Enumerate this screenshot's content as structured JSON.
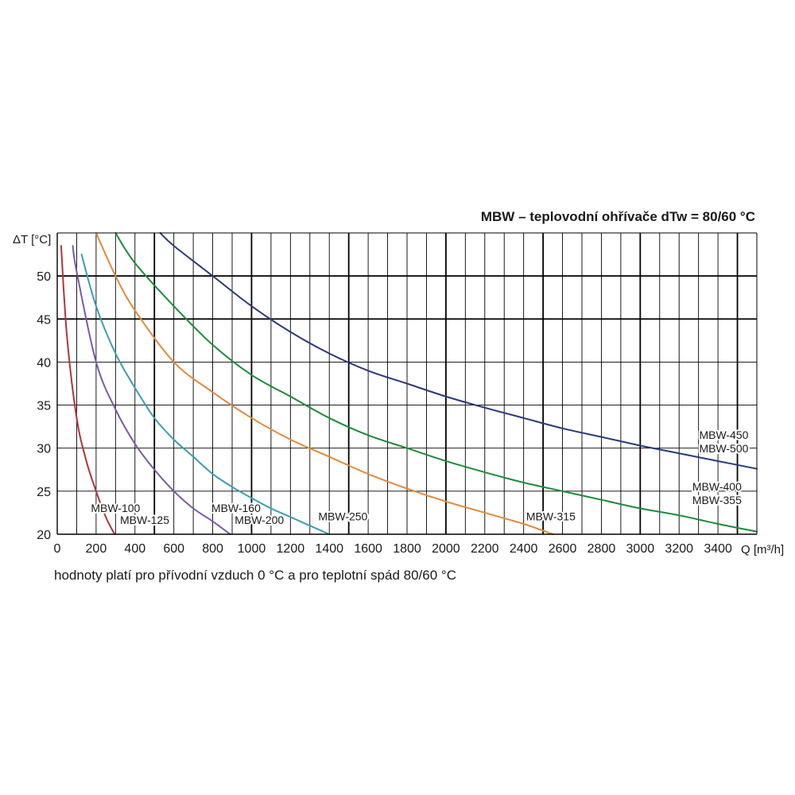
{
  "chart_data": {
    "type": "line",
    "title": "MBW – teplovodní ohřívače dTw = 80/60 °C",
    "xlabel": "Q [m³/h]",
    "ylabel": "ΔT [°C]",
    "xlim": [
      0,
      3600
    ],
    "ylim": [
      20,
      55
    ],
    "x_ticks": [
      0,
      200,
      400,
      600,
      800,
      1000,
      1200,
      1400,
      1600,
      1800,
      2000,
      2200,
      2400,
      2600,
      2800,
      3000,
      3200,
      3400
    ],
    "y_ticks": [
      20,
      25,
      30,
      35,
      40,
      45,
      50
    ],
    "grid": true,
    "series": [
      {
        "name": "MBW-100 / MBW-125",
        "color": "#b0343c",
        "points": [
          [
            20,
            53.5
          ],
          [
            50,
            43
          ],
          [
            100,
            33.5
          ],
          [
            150,
            28.5
          ],
          [
            200,
            25
          ],
          [
            250,
            22
          ],
          [
            295,
            20
          ]
        ]
      },
      {
        "name": "MBW-160 / MBW-200",
        "color": "#7a5aa8",
        "points": [
          [
            80,
            53.5
          ],
          [
            100,
            50.5
          ],
          [
            200,
            40
          ],
          [
            300,
            34.5
          ],
          [
            400,
            30.5
          ],
          [
            500,
            27.5
          ],
          [
            600,
            25
          ],
          [
            700,
            23
          ],
          [
            800,
            21.5
          ],
          [
            890,
            20
          ]
        ]
      },
      {
        "name": "MBW-250",
        "color": "#3a9cb8",
        "points": [
          [
            125,
            52.5
          ],
          [
            200,
            46.5
          ],
          [
            300,
            41
          ],
          [
            400,
            37
          ],
          [
            500,
            33.5
          ],
          [
            600,
            31
          ],
          [
            700,
            29
          ],
          [
            800,
            27
          ],
          [
            900,
            25.5
          ],
          [
            1000,
            24.2
          ],
          [
            1100,
            23
          ],
          [
            1200,
            22
          ],
          [
            1300,
            21
          ],
          [
            1400,
            20
          ]
        ]
      },
      {
        "name": "MBW-315",
        "color": "#e08a3c",
        "points": [
          [
            200,
            55
          ],
          [
            300,
            50
          ],
          [
            400,
            46
          ],
          [
            600,
            40
          ],
          [
            800,
            36.5
          ],
          [
            1000,
            33.5
          ],
          [
            1200,
            31
          ],
          [
            1400,
            29
          ],
          [
            1600,
            27
          ],
          [
            1800,
            25.3
          ],
          [
            2000,
            23.8
          ],
          [
            2200,
            22.5
          ],
          [
            2400,
            21.2
          ],
          [
            2550,
            20
          ]
        ]
      },
      {
        "name": "MBW-400 / MBW-355",
        "color": "#1e8a3c",
        "points": [
          [
            300,
            55
          ],
          [
            400,
            51.5
          ],
          [
            600,
            46.5
          ],
          [
            800,
            42
          ],
          [
            1000,
            38.5
          ],
          [
            1200,
            36
          ],
          [
            1400,
            33.5
          ],
          [
            1600,
            31.5
          ],
          [
            1800,
            30
          ],
          [
            2000,
            28.5
          ],
          [
            2200,
            27.2
          ],
          [
            2400,
            26
          ],
          [
            2600,
            25
          ],
          [
            2800,
            24
          ],
          [
            3000,
            23
          ],
          [
            3200,
            22.2
          ],
          [
            3400,
            21.2
          ],
          [
            3600,
            20.3
          ]
        ]
      },
      {
        "name": "MBW-450 / MBW-500",
        "color": "#2a3a78",
        "points": [
          [
            530,
            55
          ],
          [
            600,
            53.5
          ],
          [
            800,
            50
          ],
          [
            1000,
            46.5
          ],
          [
            1200,
            43.5
          ],
          [
            1400,
            41
          ],
          [
            1600,
            39
          ],
          [
            1800,
            37.5
          ],
          [
            2000,
            36
          ],
          [
            2200,
            34.7
          ],
          [
            2400,
            33.5
          ],
          [
            2600,
            32.3
          ],
          [
            2800,
            31.3
          ],
          [
            3000,
            30.3
          ],
          [
            3200,
            29.4
          ],
          [
            3400,
            28.5
          ],
          [
            3600,
            27.6
          ]
        ]
      }
    ],
    "annotations": [
      {
        "text": "MBW-100",
        "x": 300,
        "y": 22.6,
        "anchor": "middle"
      },
      {
        "text": "MBW-125",
        "x": 450,
        "y": 21.2,
        "anchor": "middle"
      },
      {
        "text": "MBW-160",
        "x": 920,
        "y": 22.6,
        "anchor": "middle"
      },
      {
        "text": "MBW-200",
        "x": 1040,
        "y": 21.2,
        "anchor": "middle"
      },
      {
        "text": "MBW-250",
        "x": 1470,
        "y": 21.6,
        "anchor": "middle"
      },
      {
        "text": "MBW-315",
        "x": 2540,
        "y": 21.6,
        "anchor": "middle"
      },
      {
        "text": "MBW-400",
        "x": 3395,
        "y": 25.1,
        "anchor": "middle"
      },
      {
        "text": "MBW-355",
        "x": 3395,
        "y": 23.5,
        "anchor": "middle"
      },
      {
        "text": "MBW-450",
        "x": 3430,
        "y": 31.1,
        "anchor": "middle"
      },
      {
        "text": "MBW-500",
        "x": 3430,
        "y": 29.5,
        "anchor": "middle"
      }
    ]
  },
  "footnote": "hodnoty platí pro přívodní vzduch 0 °C a pro teplotní spád 80/60 °C"
}
